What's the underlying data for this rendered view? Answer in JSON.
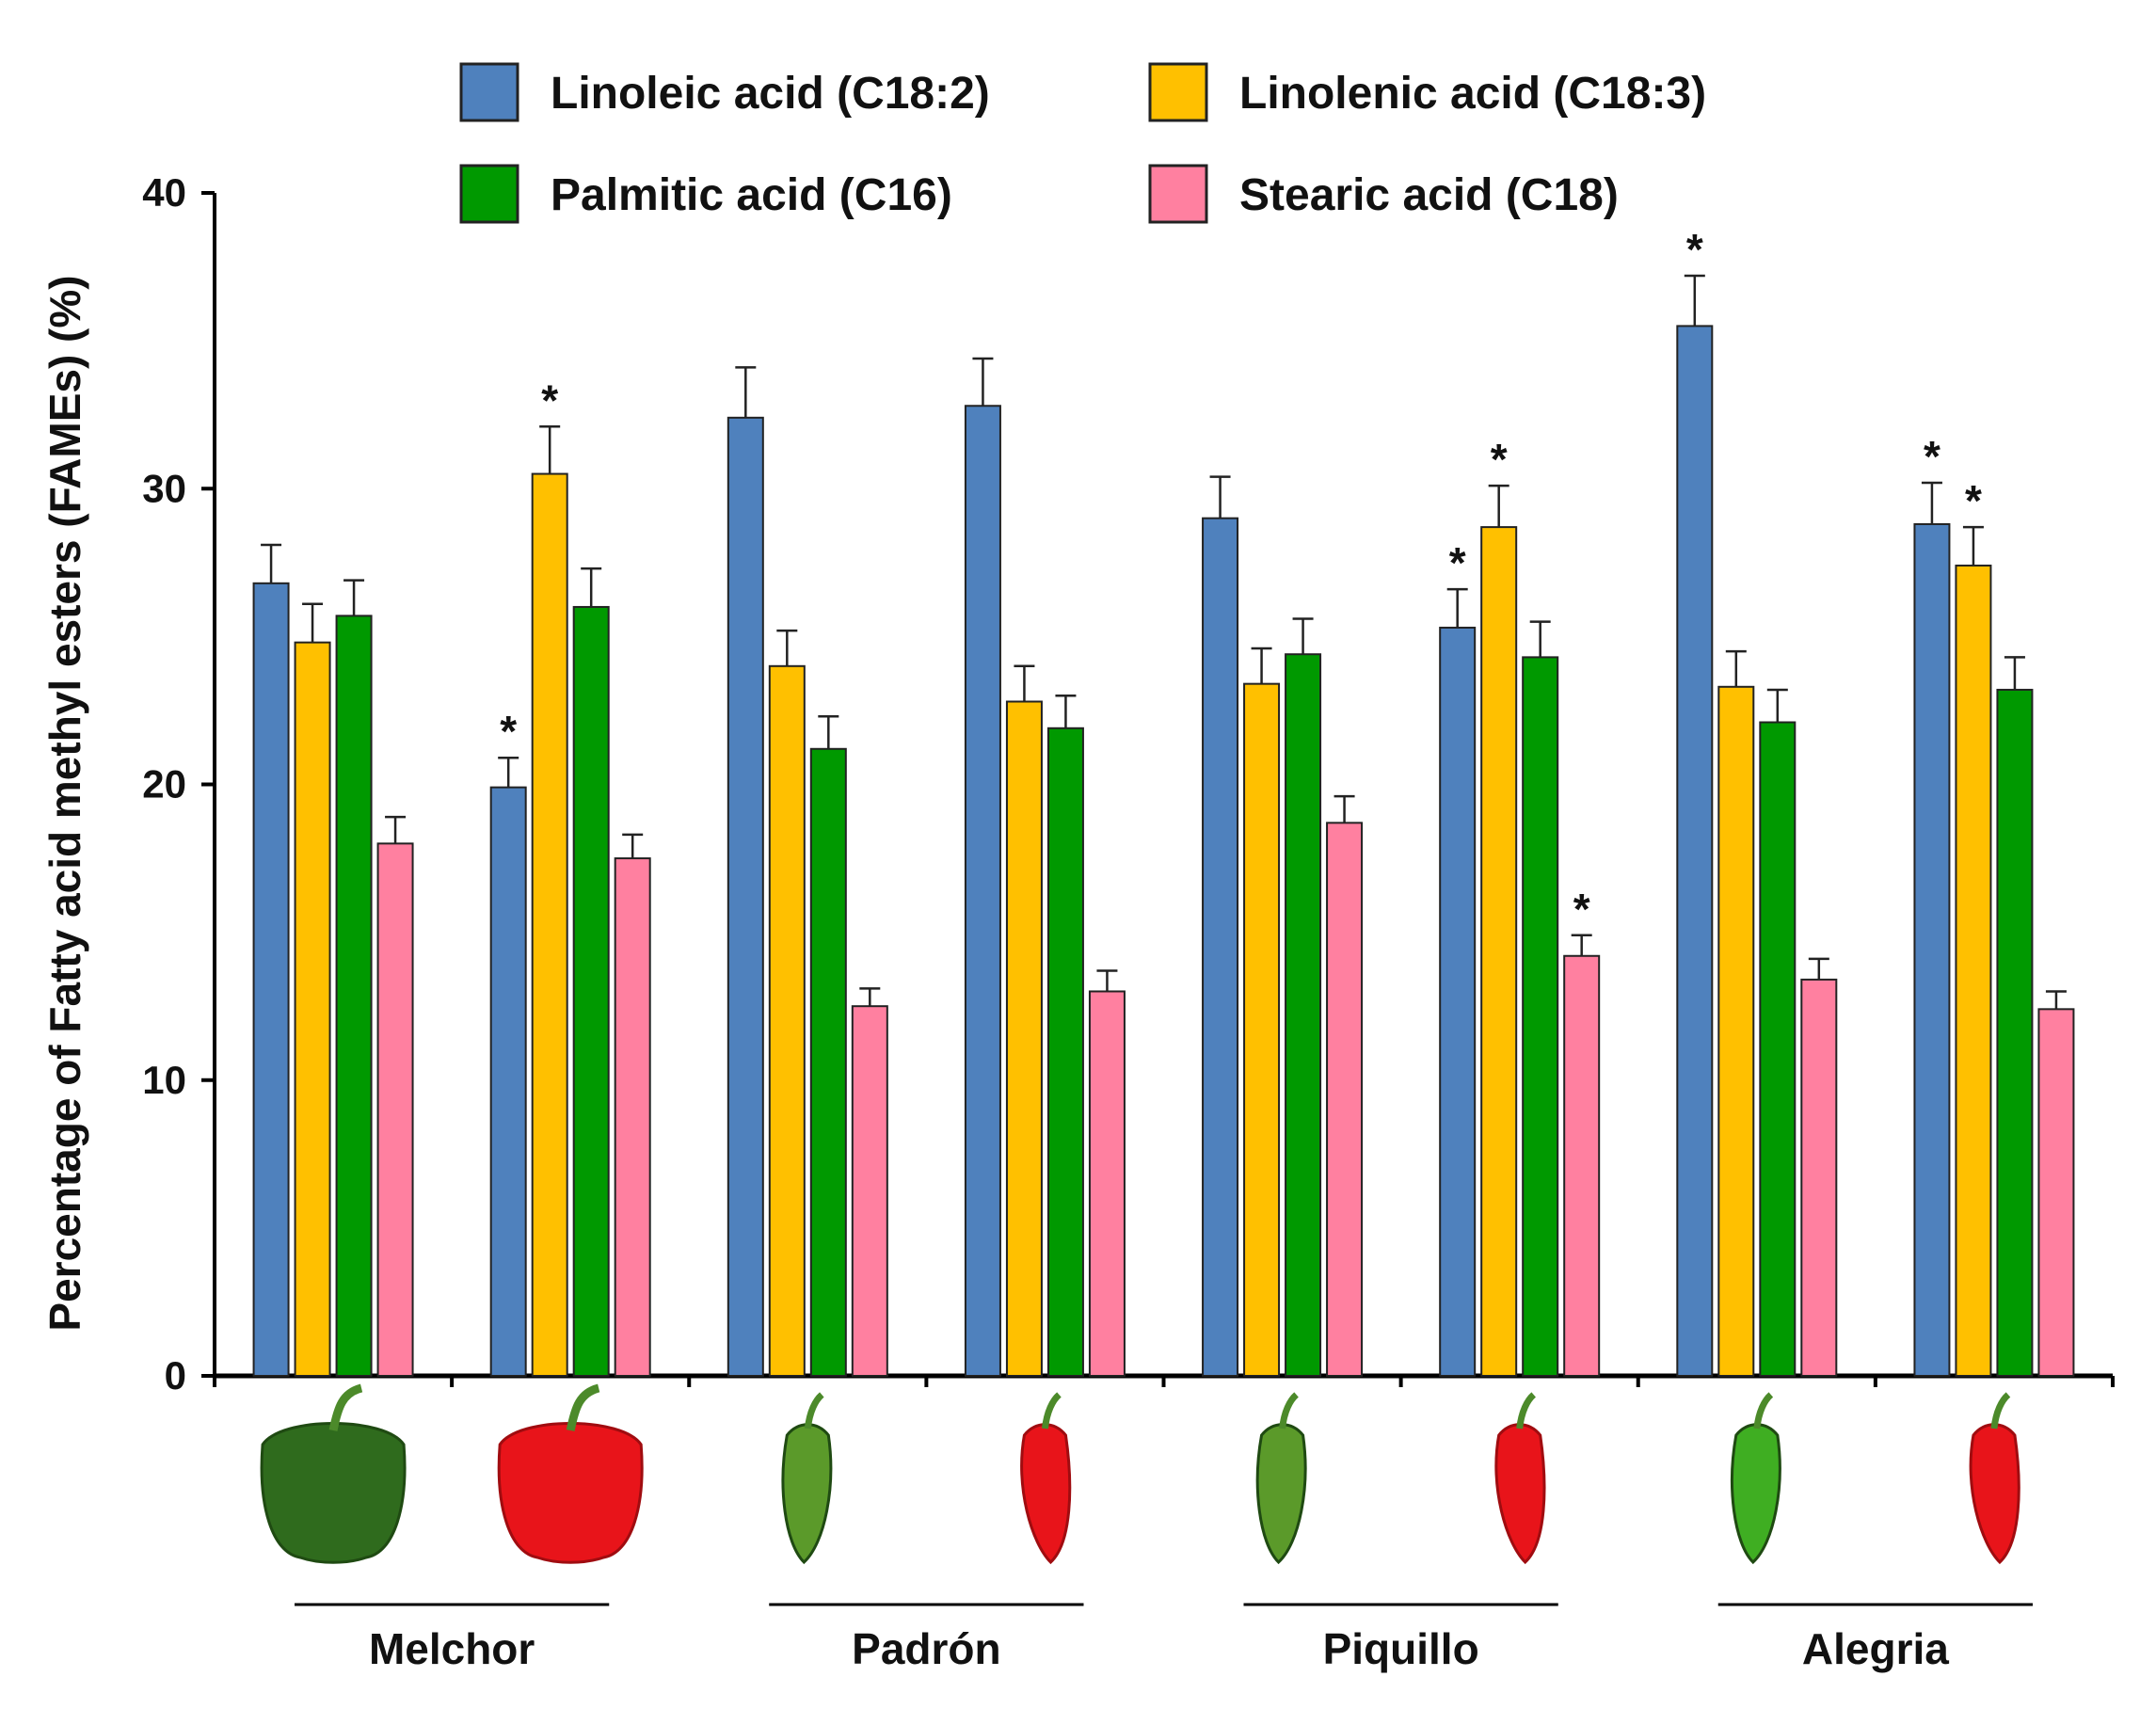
{
  "chart_data": {
    "type": "bar",
    "title": "",
    "xlabel": "",
    "ylabel": "Percentage of Fatty acid methyl esters (FAMEs) (%)",
    "ylim": [
      0,
      40
    ],
    "yticks": [
      "0",
      "10",
      "20",
      "30",
      "40"
    ],
    "grid": false,
    "legend_position": "top",
    "categories": [
      "Melchor green",
      "Melchor red",
      "Padrón green",
      "Padrón red",
      "Piquillo green",
      "Piquillo red",
      "Alegria green",
      "Alegria red"
    ],
    "category_groups": [
      {
        "label": "Melchor",
        "members": [
          0,
          1
        ]
      },
      {
        "label": "Padrón",
        "members": [
          2,
          3
        ]
      },
      {
        "label": "Piquillo",
        "members": [
          4,
          5
        ]
      },
      {
        "label": "Alegria",
        "members": [
          6,
          7
        ]
      }
    ],
    "category_images": [
      "green bell pepper",
      "red bell pepper",
      "green padrón pepper",
      "red padrón pepper",
      "green piquillo pepper",
      "red piquillo pepper",
      "green alegria pepper",
      "red alegria pepper"
    ],
    "series": [
      {
        "name": "Linoleic acid (C18:2)",
        "color": "#4f81bd",
        "values": [
          26.8,
          19.9,
          32.4,
          32.8,
          29.0,
          25.3,
          35.5,
          28.8
        ],
        "errors": [
          1.3,
          1.0,
          1.7,
          1.6,
          1.4,
          1.3,
          1.7,
          1.4
        ],
        "significant": [
          false,
          true,
          false,
          false,
          false,
          true,
          true,
          true
        ]
      },
      {
        "name": "Linolenic acid (C18:3)",
        "color": "#ffc000",
        "values": [
          24.8,
          30.5,
          24.0,
          22.8,
          23.4,
          28.7,
          23.3,
          27.4
        ],
        "errors": [
          1.3,
          1.6,
          1.2,
          1.2,
          1.2,
          1.4,
          1.2,
          1.3
        ],
        "significant": [
          false,
          true,
          false,
          false,
          false,
          true,
          false,
          true
        ]
      },
      {
        "name": "Palmitic acid (C16)",
        "color": "#009900",
        "values": [
          25.7,
          26.0,
          21.2,
          21.9,
          24.4,
          24.3,
          22.1,
          23.2
        ],
        "errors": [
          1.2,
          1.3,
          1.1,
          1.1,
          1.2,
          1.2,
          1.1,
          1.1
        ],
        "significant": [
          false,
          false,
          false,
          false,
          false,
          false,
          false,
          false
        ]
      },
      {
        "name": "Stearic acid (C18)",
        "color": "#ff80a0",
        "values": [
          18.0,
          17.5,
          12.5,
          13.0,
          18.7,
          14.2,
          13.4,
          12.4
        ],
        "errors": [
          0.9,
          0.8,
          0.6,
          0.7,
          0.9,
          0.7,
          0.7,
          0.6
        ],
        "significant": [
          false,
          false,
          false,
          false,
          false,
          true,
          false,
          false
        ]
      }
    ],
    "significance_marker": "*"
  }
}
